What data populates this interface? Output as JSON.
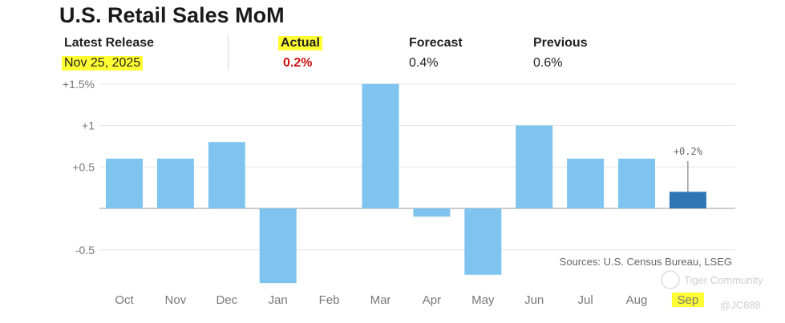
{
  "header": {
    "title": "U.S. Retail Sales MoM",
    "latest_label": "Latest Release",
    "latest_value": "Nov 25, 2025",
    "actual_label": "Actual",
    "actual_value": "0.2%",
    "forecast_label": "Forecast",
    "forecast_value": "0.4%",
    "previous_label": "Previous",
    "previous_value": "0.6%"
  },
  "colors": {
    "bar": "#7fc4ee",
    "highlight_bar": "#2e75b6",
    "actual_value": "#cc1111",
    "highlight": "#ffff33"
  },
  "chart_data": {
    "type": "bar",
    "categories": [
      "Oct",
      "Nov",
      "Dec",
      "Jan",
      "Feb",
      "Mar",
      "Apr",
      "May",
      "Jun",
      "Jul",
      "Aug",
      "Sep"
    ],
    "values": [
      0.6,
      0.6,
      0.8,
      -0.9,
      0.0,
      1.5,
      -0.1,
      -0.8,
      1.0,
      0.6,
      0.6,
      0.2
    ],
    "yticks": [
      {
        "value": 1.5,
        "label": "+1.5%"
      },
      {
        "value": 1,
        "label": "+1"
      },
      {
        "value": 0.5,
        "label": "+0.5"
      },
      {
        "value": -0.5,
        "label": "-0.5"
      }
    ],
    "ylim": [
      -0.95,
      1.55
    ],
    "highlight_index": 11,
    "annotation": "+0.2%",
    "source": "Sources: U.S. Census Bureau, LSEG",
    "grid": true
  },
  "watermark": {
    "community": "Tiger Community",
    "user": "@JC888"
  }
}
